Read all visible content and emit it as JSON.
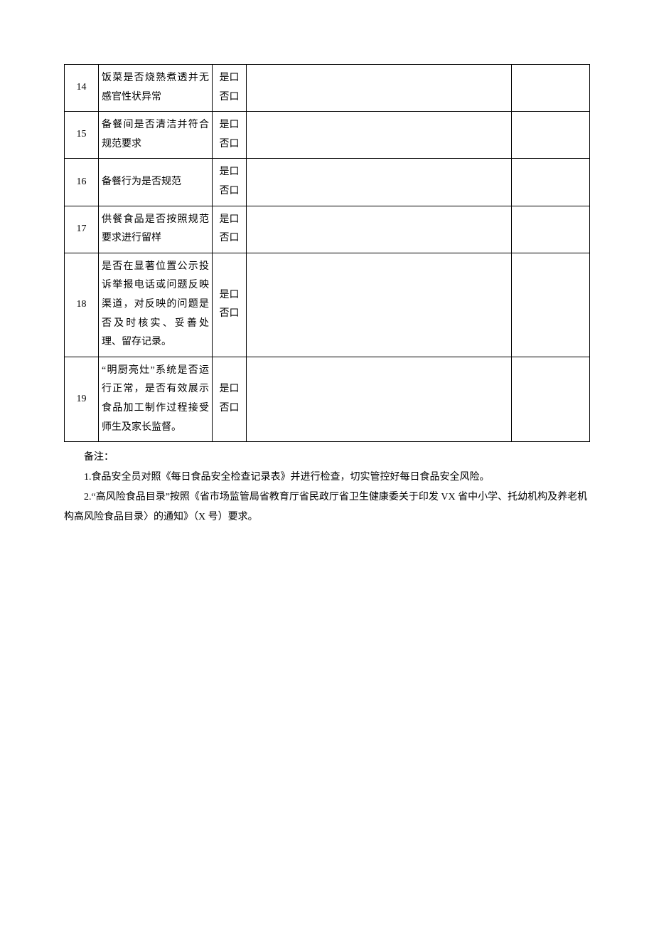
{
  "table": {
    "rows": [
      {
        "num": "14",
        "item": "饭菜是否烧熟煮透并无感官性状异常",
        "check": "是口否口"
      },
      {
        "num": "15",
        "item": "备餐间是否清洁并符合规范要求",
        "check": "是口否口"
      },
      {
        "num": "16",
        "item": "备餐行为是否规范",
        "check": "是口否口"
      },
      {
        "num": "17",
        "item": "供餐食品是否按照规范要求进行留样",
        "check": "是口否口"
      },
      {
        "num": "18",
        "item": "是否在显著位置公示投诉举报电话或问题反映渠道，对反映的问题是否及时核实、妥善处理、留存记录。",
        "check": "是口否口"
      },
      {
        "num": "19",
        "item": "“明厨亮灶”系统是否运行正常，是否有效展示食品加工制作过程接受师生及家长监督。",
        "check": "是口否口"
      }
    ]
  },
  "notes": {
    "header": "备注：",
    "line1": "1.食品安全员对照《每日食品安全检查记录表》并进行检查，切实管控好每日食品安全风险。",
    "line2": "2.“高风险食品目录”按照《省市场监管局省教育厅省民政厅省卫生健康委关于印发 VX 省中小学、托幼机构及养老机构高风险食品目录〉的通知》（X 号）要求。"
  }
}
